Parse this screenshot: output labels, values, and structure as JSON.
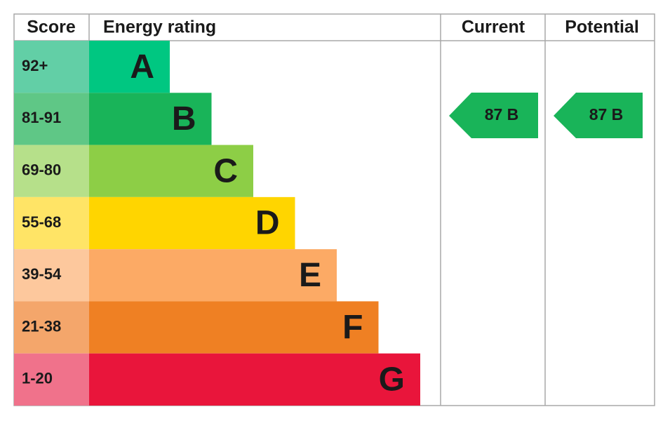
{
  "header": {
    "score": "Score",
    "energy_rating": "Energy rating",
    "current": "Current",
    "potential": "Potential"
  },
  "rows": [
    {
      "score": "92+",
      "letter": "A",
      "color": "#00c781",
      "score_color": "#62cfa6"
    },
    {
      "score": "81-91",
      "letter": "B",
      "color": "#19b459",
      "score_color": "#5fc786"
    },
    {
      "score": "69-80",
      "letter": "C",
      "color": "#8dce46",
      "score_color": "#b6e08a"
    },
    {
      "score": "55-68",
      "letter": "D",
      "color": "#ffd500",
      "score_color": "#ffe466"
    },
    {
      "score": "39-54",
      "letter": "E",
      "color": "#fcaa65",
      "score_color": "#fdc89d"
    },
    {
      "score": "21-38",
      "letter": "F",
      "color": "#ef8023",
      "score_color": "#f4a66b"
    },
    {
      "score": "1-20",
      "letter": "G",
      "color": "#e9153b",
      "score_color": "#f0728b"
    }
  ],
  "current": {
    "label": "87 B",
    "color": "#19b459"
  },
  "potential": {
    "label": "87 B",
    "color": "#19b459"
  }
}
